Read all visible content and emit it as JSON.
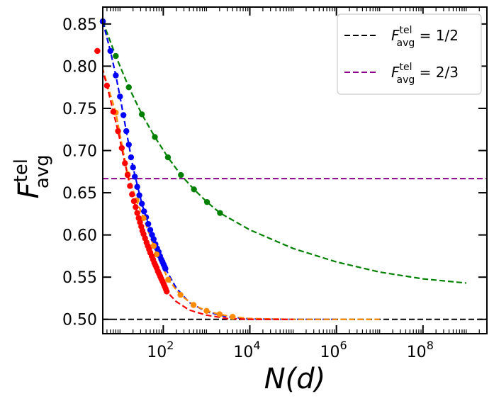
{
  "chart_data": {
    "type": "line",
    "xscale": "log",
    "xlim": [
      4,
      3000000000.0
    ],
    "ylim": [
      0.483,
      0.87
    ],
    "xlabel": "N(d)",
    "ylabel": "F^tel_avg",
    "ylabel_parts": {
      "base": "F",
      "sup": "tel",
      "sub": "avg"
    },
    "xticks": [
      {
        "value": 100,
        "base": "10",
        "exp": "2"
      },
      {
        "value": 10000,
        "base": "10",
        "exp": "4"
      },
      {
        "value": 1000000,
        "base": "10",
        "exp": "6"
      },
      {
        "value": 100000000,
        "base": "10",
        "exp": "8"
      }
    ],
    "yticks": [
      0.5,
      0.55,
      0.6,
      0.65,
      0.7,
      0.75,
      0.8,
      0.85
    ],
    "ytick_labels": [
      "0.50",
      "0.55",
      "0.60",
      "0.65",
      "0.70",
      "0.75",
      "0.80",
      "0.85"
    ],
    "hlines": [
      {
        "y": 0.5,
        "color": "#000000",
        "name": "1/2"
      },
      {
        "y": 0.6667,
        "color": "#8b008b",
        "name": "2/3"
      }
    ],
    "legend": {
      "position": "top-right",
      "entries": [
        {
          "base": "F",
          "sup": "tel",
          "sub": "avg",
          "rhs": " = 1/2",
          "color": "#000000"
        },
        {
          "base": "F",
          "sup": "tel",
          "sub": "avg",
          "rhs": " = 2/3",
          "color": "#8b008b"
        }
      ]
    },
    "series": [
      {
        "color": "#008000",
        "points": [
          [
            4,
            0.853
          ],
          [
            8,
            0.812
          ],
          [
            16,
            0.775
          ],
          [
            32,
            0.743
          ],
          [
            64,
            0.716
          ],
          [
            128,
            0.692
          ],
          [
            256,
            0.671
          ],
          [
            512,
            0.654
          ],
          [
            1024,
            0.639
          ],
          [
            2048,
            0.626
          ]
        ],
        "curve": [
          [
            4,
            0.853
          ],
          [
            8,
            0.812
          ],
          [
            16,
            0.775
          ],
          [
            32,
            0.743
          ],
          [
            64,
            0.716
          ],
          [
            128,
            0.692
          ],
          [
            256,
            0.671
          ],
          [
            512,
            0.654
          ],
          [
            1024,
            0.639
          ],
          [
            2048,
            0.626
          ],
          [
            10000,
            0.606
          ],
          [
            100000,
            0.584
          ],
          [
            1000000,
            0.568
          ],
          [
            10000000,
            0.556
          ],
          [
            100000000,
            0.548
          ],
          [
            1000000000,
            0.543
          ]
        ]
      },
      {
        "color": "#0000ff",
        "points": [
          [
            4,
            0.853
          ],
          [
            6,
            0.818
          ],
          [
            8,
            0.789
          ],
          [
            10,
            0.764
          ],
          [
            12,
            0.742
          ],
          [
            14,
            0.723
          ],
          [
            16,
            0.707
          ],
          [
            18,
            0.692
          ],
          [
            20,
            0.68
          ],
          [
            22,
            0.669
          ],
          [
            25,
            0.657
          ],
          [
            28,
            0.647
          ],
          [
            32,
            0.637
          ],
          [
            36,
            0.628
          ],
          [
            40,
            0.621
          ],
          [
            45,
            0.613
          ],
          [
            50,
            0.606
          ],
          [
            55,
            0.6
          ],
          [
            60,
            0.595
          ],
          [
            66,
            0.589
          ],
          [
            72,
            0.584
          ],
          [
            78,
            0.58
          ],
          [
            84,
            0.575
          ],
          [
            90,
            0.571
          ],
          [
            96,
            0.568
          ],
          [
            102,
            0.565
          ],
          [
            108,
            0.562
          ],
          [
            112,
            0.56
          ]
        ],
        "curve": [
          [
            4,
            0.853
          ],
          [
            6,
            0.818
          ],
          [
            8,
            0.789
          ],
          [
            10,
            0.764
          ],
          [
            14,
            0.723
          ],
          [
            20,
            0.68
          ],
          [
            32,
            0.637
          ],
          [
            50,
            0.606
          ],
          [
            80,
            0.578
          ],
          [
            112,
            0.56
          ],
          [
            200,
            0.537
          ],
          [
            400,
            0.52
          ],
          [
            1000,
            0.509
          ],
          [
            3000,
            0.503
          ],
          [
            10000,
            0.5005
          ],
          [
            100000,
            0.5
          ],
          [
            1000000,
            0.5
          ]
        ]
      },
      {
        "color": "#ff8c00",
        "points": [
          [
            3,
            0.818
          ],
          [
            8,
            0.745
          ],
          [
            15,
            0.672
          ],
          [
            24,
            0.641
          ],
          [
            35,
            0.62
          ],
          [
            60,
            0.587
          ],
          [
            70,
            0.577
          ],
          [
            130,
            0.547
          ],
          [
            250,
            0.529
          ],
          [
            500,
            0.517
          ],
          [
            1000,
            0.51
          ],
          [
            2000,
            0.506
          ],
          [
            4000,
            0.503
          ]
        ],
        "curve": [
          [
            3,
            0.818
          ],
          [
            8,
            0.745
          ],
          [
            15,
            0.672
          ],
          [
            24,
            0.641
          ],
          [
            35,
            0.62
          ],
          [
            60,
            0.587
          ],
          [
            130,
            0.547
          ],
          [
            250,
            0.529
          ],
          [
            500,
            0.517
          ],
          [
            1000,
            0.51
          ],
          [
            2000,
            0.506
          ],
          [
            4000,
            0.503
          ],
          [
            10000,
            0.501
          ],
          [
            100000,
            0.5
          ],
          [
            10000000,
            0.5
          ]
        ]
      },
      {
        "color": "#ff0000",
        "points": [
          [
            3,
            0.818
          ],
          [
            5,
            0.777
          ],
          [
            7,
            0.746
          ],
          [
            9,
            0.723
          ],
          [
            11,
            0.703
          ],
          [
            13,
            0.685
          ],
          [
            15,
            0.671
          ],
          [
            17,
            0.658
          ],
          [
            19,
            0.648
          ],
          [
            21,
            0.64
          ],
          [
            23,
            0.633
          ],
          [
            25,
            0.626
          ],
          [
            27,
            0.62
          ],
          [
            29,
            0.615
          ],
          [
            31,
            0.61
          ],
          [
            33,
            0.605
          ],
          [
            35,
            0.601
          ],
          [
            38,
            0.596
          ],
          [
            41,
            0.591
          ],
          [
            44,
            0.587
          ],
          [
            47,
            0.583
          ],
          [
            50,
            0.579
          ],
          [
            54,
            0.575
          ],
          [
            58,
            0.571
          ],
          [
            62,
            0.567
          ],
          [
            66,
            0.564
          ],
          [
            70,
            0.561
          ],
          [
            75,
            0.557
          ],
          [
            80,
            0.554
          ],
          [
            85,
            0.551
          ],
          [
            90,
            0.548
          ],
          [
            96,
            0.545
          ],
          [
            102,
            0.542
          ],
          [
            108,
            0.539
          ],
          [
            114,
            0.536
          ],
          [
            120,
            0.533
          ]
        ],
        "curve": [
          [
            3,
            0.818
          ],
          [
            5,
            0.777
          ],
          [
            7,
            0.746
          ],
          [
            9,
            0.723
          ],
          [
            13,
            0.685
          ],
          [
            19,
            0.648
          ],
          [
            27,
            0.62
          ],
          [
            38,
            0.596
          ],
          [
            54,
            0.575
          ],
          [
            75,
            0.557
          ],
          [
            120,
            0.533
          ],
          [
            200,
            0.521
          ],
          [
            400,
            0.511
          ],
          [
            1000,
            0.505
          ],
          [
            3000,
            0.501
          ],
          [
            10000,
            0.5
          ],
          [
            100000,
            0.5
          ]
        ]
      }
    ]
  }
}
